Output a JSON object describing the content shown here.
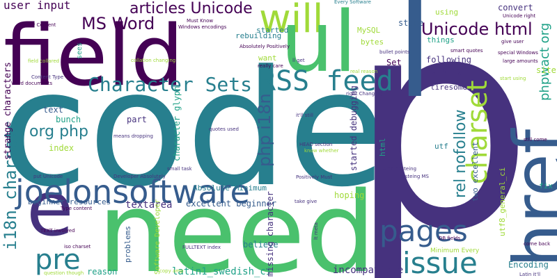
{
  "palette": {
    "dark_purple": "#440154",
    "indigo": "#46327e",
    "blue": "#365c8d",
    "teal_blue": "#277f8e",
    "teal": "#1fa187",
    "green": "#4ac16d",
    "lime": "#a0da39",
    "yellow": "#fde725"
  },
  "words": [
    "code",
    "p",
    "field",
    "need",
    "l",
    "href",
    "e",
    "will",
    "ul",
    "joelonsoftware",
    "pre",
    "pages",
    "issue",
    "RSS feed",
    "Character Sets",
    "charset",
    "MS Word",
    "articles Unicode",
    "Unicode html",
    "php i18n",
    "org php",
    "i18n charsets",
    "rel nofollow",
    "phpwact org",
    "user input",
    "strange characters",
    "Set",
    "textarea",
    "beginner resources",
    "excellent beginner",
    "Absolute Minimum",
    "latin1_swedish_ci",
    "incompatible",
    "Encoding",
    "problems",
    "reason",
    "believe",
    "missing character",
    "started debugging",
    "character glyph",
    "part",
    "bunch",
    "text",
    "index",
    "utf8_general_ci",
    "two excellent",
    "site",
    "following",
    "raising",
    "tiresome",
    "things",
    "bytes",
    "MySQL",
    "store",
    "convert",
    "using",
    "started",
    "rebuilding",
    "want",
    "hoping",
    "html",
    "utf",
    "fix",
    "Software Developer",
    "sees",
    "field collared",
    "Content Type",
    "Word documents",
    "equiv Content",
    "Every Software",
    "Must Know",
    "Windows encodings",
    "Absolutely Positively",
    "collation changing",
    "ll get",
    "really care",
    "real reason",
    "bullet points",
    "smart quotes",
    "Unicode right",
    "give user",
    "special Windows",
    "large amounts",
    "start using",
    "right Changing",
    "it'll still",
    "quotes used",
    "HEAD section",
    "know whether",
    "means dropping",
    "put Unicode",
    "Developer Absolutely",
    "small task",
    "Positively Must",
    "still come",
    "amp pasteing",
    "pasteing MS",
    "take give",
    "Type content",
    "TEXT involved",
    "iso charset",
    "lt meta",
    "FULLTEXT index",
    "Minimum Every",
    "DB fields",
    "come back",
    "Latin it'll",
    "question though",
    "copy amp"
  ]
}
